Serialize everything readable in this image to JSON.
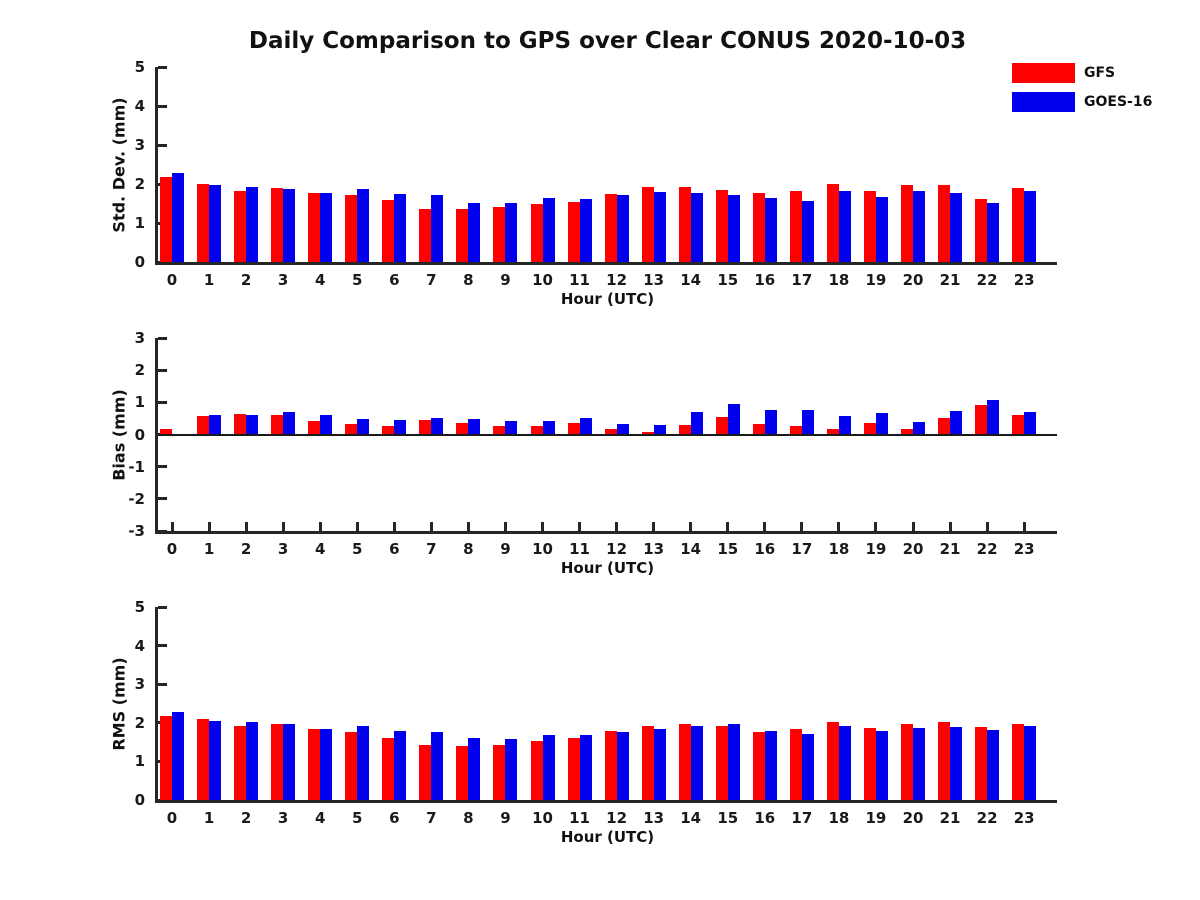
{
  "title": "Daily Comparison to GPS over Clear CONUS 2020-10-03",
  "legend": [
    {
      "label": "GFS",
      "color": "#ff0000"
    },
    {
      "label": "GOES-16",
      "color": "#0000ee"
    }
  ],
  "colors": {
    "gfs": "#ff0000",
    "goes16": "#0000ee",
    "axis": "#262626",
    "text": "#1a1a1a"
  },
  "chart_data": [
    {
      "type": "bar",
      "title": "Daily Comparison to GPS over Clear CONUS 2020-10-03",
      "ylabel": "Std. Dev. (mm)",
      "xlabel": "Hour (UTC)",
      "ylim": [
        0,
        5
      ],
      "yticks": [
        0,
        1,
        2,
        3,
        4,
        5
      ],
      "grid": false,
      "legend_position": "upper-right-of-figure",
      "categories": [
        "0",
        "1",
        "2",
        "3",
        "4",
        "5",
        "6",
        "7",
        "8",
        "9",
        "10",
        "11",
        "12",
        "13",
        "14",
        "15",
        "16",
        "17",
        "18",
        "19",
        "20",
        "21",
        "22",
        "23"
      ],
      "series": [
        {
          "name": "GFS",
          "color": "#ff0000",
          "values": [
            2.18,
            2.01,
            1.82,
            1.9,
            1.78,
            1.72,
            1.6,
            1.37,
            1.35,
            1.42,
            1.5,
            1.55,
            1.75,
            1.92,
            1.92,
            1.85,
            1.76,
            1.81,
            2.0,
            1.81,
            1.97,
            1.97,
            1.61,
            1.9
          ]
        },
        {
          "name": "GOES-16",
          "color": "#0000ee",
          "values": [
            2.27,
            1.97,
            1.93,
            1.87,
            1.76,
            1.88,
            1.74,
            1.71,
            1.52,
            1.52,
            1.64,
            1.61,
            1.73,
            1.8,
            1.78,
            1.72,
            1.64,
            1.56,
            1.83,
            1.67,
            1.81,
            1.76,
            1.51,
            1.82
          ]
        }
      ]
    },
    {
      "type": "bar",
      "ylabel": "Bias (mm)",
      "xlabel": "Hour (UTC)",
      "ylim": [
        -3,
        3
      ],
      "yticks": [
        3,
        2,
        1,
        0,
        -1,
        -2,
        -3
      ],
      "grid": false,
      "zero_line": true,
      "categories": [
        "0",
        "1",
        "2",
        "3",
        "4",
        "5",
        "6",
        "7",
        "8",
        "9",
        "10",
        "11",
        "12",
        "13",
        "14",
        "15",
        "16",
        "17",
        "18",
        "19",
        "20",
        "21",
        "22",
        "23"
      ],
      "series": [
        {
          "name": "GFS",
          "color": "#ff0000",
          "values": [
            0.18,
            0.57,
            0.63,
            0.6,
            0.42,
            0.33,
            0.26,
            0.46,
            0.37,
            0.27,
            0.27,
            0.36,
            0.18,
            0.08,
            0.3,
            0.54,
            0.33,
            0.26,
            0.18,
            0.35,
            0.16,
            0.51,
            0.93,
            0.61
          ]
        },
        {
          "name": "GOES-16",
          "color": "#0000ee",
          "values": [
            0.03,
            0.6,
            0.62,
            0.7,
            0.6,
            0.49,
            0.46,
            0.51,
            0.48,
            0.42,
            0.41,
            0.51,
            0.34,
            0.31,
            0.69,
            0.95,
            0.77,
            0.76,
            0.59,
            0.66,
            0.38,
            0.74,
            1.07,
            0.69
          ]
        }
      ]
    },
    {
      "type": "bar",
      "ylabel": "RMS (mm)",
      "xlabel": "Hour (UTC)",
      "ylim": [
        0,
        5
      ],
      "yticks": [
        0,
        1,
        2,
        3,
        4,
        5
      ],
      "grid": false,
      "categories": [
        "0",
        "1",
        "2",
        "3",
        "4",
        "5",
        "6",
        "7",
        "8",
        "9",
        "10",
        "11",
        "12",
        "13",
        "14",
        "15",
        "16",
        "17",
        "18",
        "19",
        "20",
        "21",
        "22",
        "23"
      ],
      "series": [
        {
          "name": "GFS",
          "color": "#ff0000",
          "values": [
            2.17,
            2.09,
            1.93,
            1.98,
            1.83,
            1.76,
            1.61,
            1.43,
            1.4,
            1.43,
            1.53,
            1.6,
            1.78,
            1.92,
            1.96,
            1.93,
            1.77,
            1.83,
            2.01,
            1.87,
            1.98,
            2.03,
            1.89,
            1.98
          ]
        },
        {
          "name": "GOES-16",
          "color": "#0000ee",
          "values": [
            2.29,
            2.05,
            2.02,
            1.98,
            1.83,
            1.93,
            1.8,
            1.77,
            1.61,
            1.57,
            1.68,
            1.68,
            1.75,
            1.83,
            1.92,
            1.98,
            1.8,
            1.72,
            1.92,
            1.78,
            1.86,
            1.88,
            1.82,
            1.93
          ]
        }
      ]
    }
  ]
}
